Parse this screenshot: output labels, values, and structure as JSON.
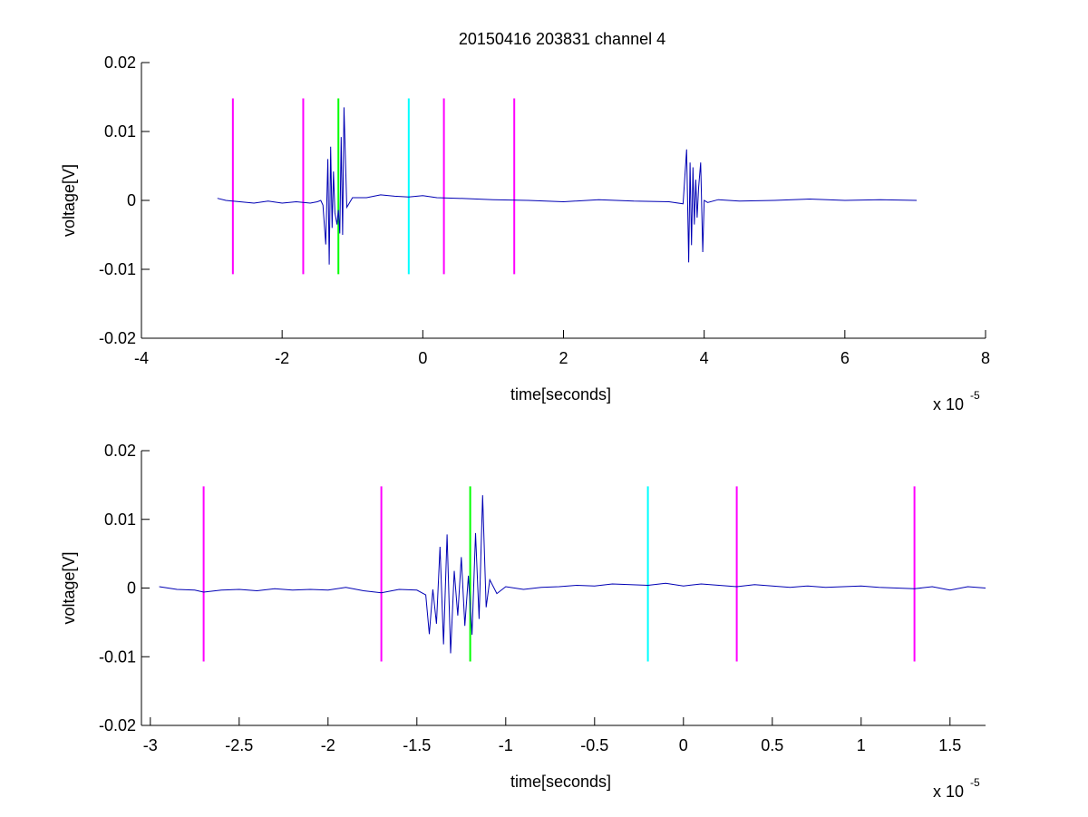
{
  "figure": {
    "title": "20150416 203831 channel 4"
  },
  "colors": {
    "signal": "#0000b4",
    "magenta": "#ff00ff",
    "green": "#00ff00",
    "cyan": "#00ffff"
  },
  "chart_data": [
    {
      "type": "line",
      "title": "20150416 203831 channel 4",
      "xlabel": "time[seconds]",
      "ylabel": "voltage[V]",
      "x_exponent_label": "x 10",
      "x_exponent": "-5",
      "xlim": [
        -4e-05,
        8e-05
      ],
      "ylim": [
        -0.02,
        0.02
      ],
      "x_ticks": [
        -4e-05,
        -2e-05,
        0,
        2e-05,
        4e-05,
        6e-05,
        8e-05
      ],
      "x_tick_labels": [
        "-4",
        "-2",
        "0",
        "2",
        "4",
        "6",
        "8"
      ],
      "y_ticks": [
        -0.02,
        -0.01,
        0,
        0.01,
        0.02
      ],
      "y_tick_labels": [
        "-0.02",
        "-0.01",
        "0",
        "0.01",
        "0.02"
      ],
      "grid": false,
      "series": [
        {
          "color": "#0000b4",
          "x": [
            -2.92e-05,
            -2.8e-05,
            -2.6e-05,
            -2.4e-05,
            -2.2e-05,
            -2e-05,
            -1.8e-05,
            -1.6e-05,
            -1.5e-05,
            -1.45e-05,
            -1.42e-05,
            -1.4e-05,
            -1.38e-05,
            -1.35e-05,
            -1.33e-05,
            -1.31e-05,
            -1.29e-05,
            -1.27e-05,
            -1.25e-05,
            -1.22e-05,
            -1.2e-05,
            -1.18e-05,
            -1.16e-05,
            -1.14e-05,
            -1.12e-05,
            -1.08e-05,
            -1e-05,
            -8e-06,
            -6e-06,
            -4e-06,
            -2e-06,
            0,
            2e-06,
            5e-06,
            1e-05,
            1.5e-05,
            2e-05,
            2.5e-05,
            3e-05,
            3.5e-05,
            3.7e-05,
            3.75e-05,
            3.78e-05,
            3.8e-05,
            3.82e-05,
            3.84e-05,
            3.86e-05,
            3.88e-05,
            3.9e-05,
            3.92e-05,
            3.95e-05,
            3.98e-05,
            4e-05,
            4.05e-05,
            4.2e-05,
            4.5e-05,
            5e-05,
            5.5e-05,
            6e-05,
            6.5e-05,
            7.02e-05
          ],
          "y": [
            0.0003,
            0.0,
            -0.0002,
            -0.0004,
            -0.0001,
            -0.0004,
            -0.0002,
            -0.0004,
            -0.0002,
            0.0,
            -0.0007,
            -0.0035,
            -0.0064,
            0.006,
            -0.0093,
            0.0078,
            -0.004,
            0.0042,
            -0.0018,
            -0.0035,
            -0.0014,
            -0.0048,
            0.0092,
            -0.005,
            0.0135,
            -0.001,
            0.0004,
            0.0004,
            0.0008,
            0.0006,
            0.0005,
            0.0007,
            0.0004,
            0.0003,
            0.0001,
            0.0,
            -0.0002,
            0.0001,
            -0.0001,
            -0.0002,
            -0.0005,
            0.0074,
            -0.009,
            0.0055,
            -0.0065,
            0.0048,
            -0.0035,
            0.003,
            -0.0025,
            0.0018,
            0.0055,
            -0.0075,
            0.0,
            -0.0003,
            0.0001,
            -0.0001,
            0.0,
            0.0002,
            0.0,
            0.0001,
            0.0
          ]
        }
      ],
      "markers": [
        {
          "x": -2.7e-05,
          "color": "#ff00ff",
          "y_range": [
            -0.0107,
            0.0148
          ]
        },
        {
          "x": -1.7e-05,
          "color": "#ff00ff",
          "y_range": [
            -0.0107,
            0.0148
          ]
        },
        {
          "x": -1.2e-05,
          "color": "#00ff00",
          "y_range": [
            -0.0107,
            0.0148
          ]
        },
        {
          "x": -2e-06,
          "color": "#00ffff",
          "y_range": [
            -0.0107,
            0.0148
          ]
        },
        {
          "x": 3e-06,
          "color": "#ff00ff",
          "y_range": [
            -0.0107,
            0.0148
          ]
        },
        {
          "x": 1.3e-05,
          "color": "#ff00ff",
          "y_range": [
            -0.0107,
            0.0148
          ]
        }
      ]
    },
    {
      "type": "line",
      "title": "",
      "xlabel": "time[seconds]",
      "ylabel": "voltage[V]",
      "x_exponent_label": "x 10",
      "x_exponent": "-5",
      "xlim": [
        -3.05e-05,
        1.7e-05
      ],
      "ylim": [
        -0.02,
        0.02
      ],
      "x_ticks": [
        -3e-05,
        -2.5e-05,
        -2e-05,
        -1.5e-05,
        -1e-05,
        -5e-06,
        0,
        5e-06,
        1e-05,
        1.5e-05
      ],
      "x_tick_labels": [
        "-3",
        "-2.5",
        "-2",
        "-1.5",
        "-1",
        "-0.5",
        "0",
        "0.5",
        "1",
        "1.5"
      ],
      "y_ticks": [
        -0.02,
        -0.01,
        0,
        0.01,
        0.02
      ],
      "y_tick_labels": [
        "-0.02",
        "-0.01",
        "0",
        "0.01",
        "0.02"
      ],
      "grid": false,
      "series": [
        {
          "color": "#0000b4",
          "x": [
            -2.95e-05,
            -2.85e-05,
            -2.75e-05,
            -2.7e-05,
            -2.6e-05,
            -2.5e-05,
            -2.4e-05,
            -2.3e-05,
            -2.2e-05,
            -2.1e-05,
            -2e-05,
            -1.9e-05,
            -1.8e-05,
            -1.7e-05,
            -1.6e-05,
            -1.5e-05,
            -1.45e-05,
            -1.43e-05,
            -1.41e-05,
            -1.39e-05,
            -1.37e-05,
            -1.35e-05,
            -1.33e-05,
            -1.31e-05,
            -1.29e-05,
            -1.27e-05,
            -1.25e-05,
            -1.23e-05,
            -1.21e-05,
            -1.19e-05,
            -1.17e-05,
            -1.15e-05,
            -1.13e-05,
            -1.11e-05,
            -1.09e-05,
            -1.05e-05,
            -1e-05,
            -9e-06,
            -8e-06,
            -7e-06,
            -6e-06,
            -5e-06,
            -4e-06,
            -3e-06,
            -2e-06,
            -1e-06,
            0,
            1e-06,
            2e-06,
            3e-06,
            4e-06,
            5e-06,
            6e-06,
            7e-06,
            8e-06,
            9e-06,
            1e-05,
            1.1e-05,
            1.2e-05,
            1.3e-05,
            1.4e-05,
            1.5e-05,
            1.6e-05,
            1.7e-05
          ],
          "y": [
            0.0002,
            -0.0002,
            -0.0003,
            -0.0006,
            -0.0003,
            -0.0002,
            -0.0004,
            -0.0001,
            -0.0003,
            -0.0002,
            -0.0003,
            0.0001,
            -0.0004,
            -0.0007,
            -0.0002,
            -0.0003,
            -0.001,
            -0.0067,
            -0.0002,
            -0.0052,
            0.006,
            -0.0082,
            0.0078,
            -0.0095,
            0.0025,
            -0.004,
            0.0045,
            -0.0055,
            0.0018,
            -0.0068,
            0.008,
            -0.0045,
            0.0135,
            -0.0028,
            0.0012,
            -0.0008,
            0.0002,
            -0.0002,
            0.0001,
            0.0002,
            0.0004,
            0.0003,
            0.0006,
            0.0005,
            0.0004,
            0.0007,
            0.0003,
            0.0006,
            0.0004,
            0.0002,
            0.0005,
            0.0003,
            0.0001,
            0.0003,
            0.0001,
            0.0002,
            0.0003,
            0.0001,
            0.0,
            -0.0001,
            0.0002,
            -0.0003,
            0.0002,
            0.0
          ]
        }
      ],
      "markers": [
        {
          "x": -2.7e-05,
          "color": "#ff00ff",
          "y_range": [
            -0.0107,
            0.0148
          ]
        },
        {
          "x": -1.7e-05,
          "color": "#ff00ff",
          "y_range": [
            -0.0107,
            0.0148
          ]
        },
        {
          "x": -1.2e-05,
          "color": "#00ff00",
          "y_range": [
            -0.0107,
            0.0148
          ]
        },
        {
          "x": -2e-06,
          "color": "#00ffff",
          "y_range": [
            -0.0107,
            0.0148
          ]
        },
        {
          "x": 3e-06,
          "color": "#ff00ff",
          "y_range": [
            -0.0107,
            0.0148
          ]
        },
        {
          "x": 1.3e-05,
          "color": "#ff00ff",
          "y_range": [
            -0.0107,
            0.0148
          ]
        }
      ]
    }
  ]
}
